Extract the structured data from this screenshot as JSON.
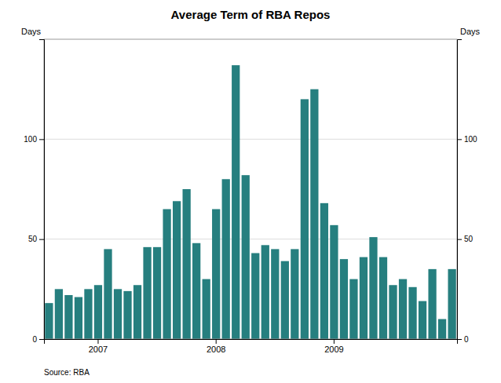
{
  "chart_data": {
    "type": "bar",
    "title": "Average Term of RBA Repos",
    "y_label": "Days",
    "y2_label": "Days",
    "source": "Source: RBA",
    "categories": [
      null,
      null,
      null,
      null,
      null,
      "2007",
      null,
      null,
      null,
      null,
      null,
      null,
      null,
      null,
      null,
      null,
      null,
      "2008",
      null,
      null,
      null,
      null,
      null,
      null,
      null,
      null,
      null,
      null,
      null,
      "2009",
      null,
      null,
      null,
      null,
      null,
      null,
      null,
      null,
      null,
      null,
      null,
      null
    ],
    "values": [
      18,
      25,
      22,
      21,
      25,
      27,
      45,
      25,
      24,
      27,
      46,
      46,
      65,
      69,
      75,
      48,
      30,
      65,
      80,
      137,
      82,
      43,
      47,
      45,
      39,
      45,
      120,
      125,
      68,
      57,
      40,
      30,
      41,
      51,
      41,
      27,
      30,
      26,
      19,
      35,
      10,
      35
    ],
    "color": "#267f7f",
    "ylim": [
      0,
      150
    ],
    "yticks": [
      0,
      50,
      100
    ],
    "y2lim": [
      0,
      150
    ],
    "y2ticks": [
      0,
      50,
      100
    ],
    "grid": true
  }
}
